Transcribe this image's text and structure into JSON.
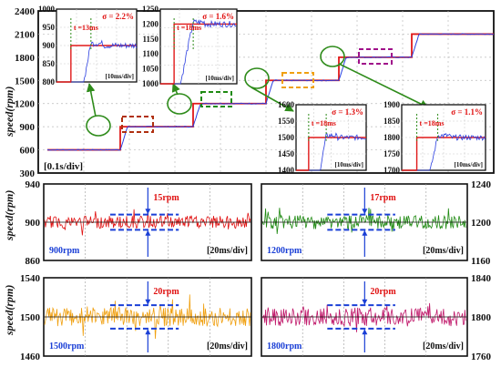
{
  "colors": {
    "reference": "#e01818",
    "response": "#2a3ee0",
    "panel_900": "#e01010",
    "panel_1200": "#1f8a12",
    "panel_1500": "#f0a010",
    "panel_1800": "#c0186a",
    "annotation": "#1a3fd6",
    "arrow": "#2e8b1a"
  },
  "chart_data": [
    {
      "type": "line",
      "ylabel": "speed(rpm)",
      "ylim": [
        300,
        2400
      ],
      "yticks": [
        "300",
        "600",
        "900",
        "1200",
        "1500",
        "1800",
        "2100",
        "2400"
      ],
      "grid": true,
      "time_label": "[0.1s/div]",
      "steps": [
        {
          "x": 0.0,
          "y": 600
        },
        {
          "x": 0.1,
          "y": 900
        },
        {
          "x": 0.2,
          "y": 1200
        },
        {
          "x": 0.3,
          "y": 1500
        },
        {
          "x": 0.4,
          "y": 1800
        },
        {
          "x": 0.5,
          "y": 2100
        }
      ],
      "insets": [
        {
          "ylim": [
            800,
            1000
          ],
          "yticks": [
            "800",
            "850",
            "900",
            "950",
            "1000"
          ],
          "sigma": "σ = 2.2%",
          "rise": "t =13ms",
          "time_label": "[10ms/div]"
        },
        {
          "ylim": [
            1000,
            1250
          ],
          "yticks": [
            "1000",
            "1050",
            "1100",
            "1150",
            "1200",
            "1250"
          ],
          "sigma": "σ = 1.6%",
          "rise": "t =18ms",
          "time_label": "[10ms/div]"
        },
        {
          "ylim": [
            1400,
            1600
          ],
          "yticks": [
            "1400",
            "1450",
            "1500",
            "1550",
            "1600"
          ],
          "sigma": "σ = 1.3%",
          "rise": "t =18ms",
          "time_label": "[10ms/div]"
        },
        {
          "ylim": [
            1700,
            1900
          ],
          "yticks": [
            "1700",
            "1750",
            "1800",
            "1850",
            "1900"
          ],
          "sigma": "σ = 1.1%",
          "rise": "t =18ms",
          "time_label": "[10ms/div]"
        }
      ]
    },
    {
      "type": "line",
      "series": [
        {
          "name": "900rpm"
        }
      ],
      "ylim": [
        860,
        940
      ],
      "yticks": [
        "860",
        "900",
        "940"
      ],
      "ripple": "15rpm",
      "time_label": "[20ms/div]"
    },
    {
      "type": "line",
      "series": [
        {
          "name": "1200rpm"
        }
      ],
      "ylim": [
        1160,
        1240
      ],
      "yticks": [
        "1160",
        "1200",
        "1240"
      ],
      "ripple": "17rpm",
      "time_label": "[20ms/div]"
    },
    {
      "type": "line",
      "series": [
        {
          "name": "1500rpm"
        }
      ],
      "ylim": [
        1460,
        1540
      ],
      "yticks": [
        "1460",
        "1500",
        "1540"
      ],
      "ripple": "20rpm",
      "time_label": "[20ms/div]"
    },
    {
      "type": "line",
      "series": [
        {
          "name": "1800rpm"
        }
      ],
      "ylim": [
        1760,
        1840
      ],
      "yticks": [
        "1760",
        "1800",
        "1840"
      ],
      "ripple": "20rpm",
      "time_label": "[20ms/div]"
    }
  ]
}
